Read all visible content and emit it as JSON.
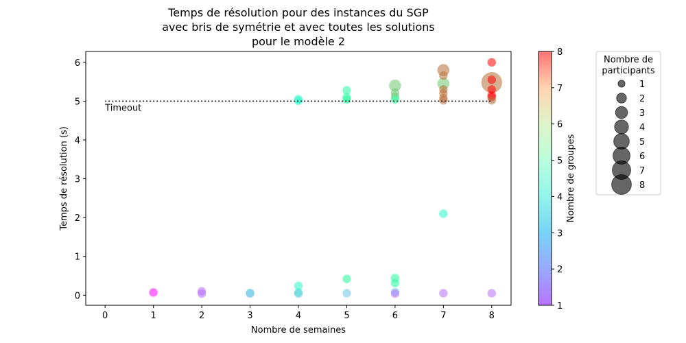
{
  "chart_data": {
    "type": "scatter",
    "title": [
      "Temps de résolution pour des instances du SGP",
      "avec bris de symétrie et avec toutes les solutions",
      "pour le modèle 2"
    ],
    "xlabel": "Nombre de semaines",
    "ylabel": "Temps de résolution (s)",
    "xlim": [
      -0.4,
      8.4
    ],
    "ylim": [
      -0.26,
      6.28
    ],
    "xticks": [
      0,
      1,
      2,
      3,
      4,
      5,
      6,
      7,
      8
    ],
    "yticks": [
      0,
      1,
      2,
      3,
      4,
      5,
      6
    ],
    "grid": false,
    "timeout": {
      "y": 5,
      "label": "Timeout",
      "style": "dotted"
    },
    "colorbar": {
      "label": "Nombre de groupes",
      "range": [
        1,
        8
      ],
      "ticks": [
        1,
        2,
        3,
        4,
        5,
        6,
        7,
        8
      ],
      "colormap": "rainbow"
    },
    "size_legend": {
      "title": [
        "Nombre de",
        "participants"
      ],
      "entries": [
        1,
        2,
        3,
        4,
        5,
        6,
        7,
        8
      ],
      "color": "#000000",
      "placement": "outside right"
    },
    "points": [
      {
        "x": 1,
        "y": 0.07,
        "groups": 1,
        "participants": 1
      },
      {
        "x": 2,
        "y": 0.1,
        "groups": 2,
        "participants": 1
      },
      {
        "x": 2,
        "y": 0.04,
        "groups": 2,
        "participants": 1
      },
      {
        "x": 3,
        "y": 0.06,
        "groups": 3,
        "participants": 1
      },
      {
        "x": 3,
        "y": 0.04,
        "groups": 3,
        "participants": 1
      },
      {
        "x": 4,
        "y": 0.24,
        "groups": 4,
        "participants": 1
      },
      {
        "x": 4,
        "y": 0.07,
        "groups": 4,
        "participants": 1
      },
      {
        "x": 4,
        "y": 0.04,
        "groups": 3,
        "participants": 1
      },
      {
        "x": 4,
        "y": 5.05,
        "groups": 4,
        "participants": 1
      },
      {
        "x": 4,
        "y": 5.01,
        "groups": 4,
        "participants": 1
      },
      {
        "x": 5,
        "y": 0.42,
        "groups": 5,
        "participants": 1
      },
      {
        "x": 5,
        "y": 0.05,
        "groups": 3,
        "participants": 1
      },
      {
        "x": 5,
        "y": 5.28,
        "groups": 5,
        "participants": 1
      },
      {
        "x": 5,
        "y": 5.1,
        "groups": 5,
        "participants": 1
      },
      {
        "x": 5,
        "y": 5.04,
        "groups": 5,
        "participants": 1
      },
      {
        "x": 6,
        "y": 0.44,
        "groups": 5,
        "participants": 1
      },
      {
        "x": 6,
        "y": 0.31,
        "groups": 5,
        "participants": 1
      },
      {
        "x": 6,
        "y": 0.08,
        "groups": 3,
        "participants": 1
      },
      {
        "x": 6,
        "y": 0.04,
        "groups": 2,
        "participants": 1
      },
      {
        "x": 6,
        "y": 5.4,
        "groups": 6,
        "participants": 2
      },
      {
        "x": 6,
        "y": 5.22,
        "groups": 6,
        "participants": 1
      },
      {
        "x": 6,
        "y": 5.12,
        "groups": 6,
        "participants": 1
      },
      {
        "x": 6,
        "y": 5.04,
        "groups": 5,
        "participants": 1
      },
      {
        "x": 7,
        "y": 2.1,
        "groups": 4,
        "participants": 1
      },
      {
        "x": 7,
        "y": 0.05,
        "groups": 2,
        "participants": 1
      },
      {
        "x": 7,
        "y": 5.8,
        "groups": 7,
        "participants": 2
      },
      {
        "x": 7,
        "y": 5.66,
        "groups": 7,
        "participants": 1
      },
      {
        "x": 7,
        "y": 5.45,
        "groups": 6,
        "participants": 2
      },
      {
        "x": 7,
        "y": 5.3,
        "groups": 7,
        "participants": 1
      },
      {
        "x": 7,
        "y": 5.2,
        "groups": 7,
        "participants": 1
      },
      {
        "x": 7,
        "y": 5.08,
        "groups": 7,
        "participants": 1
      },
      {
        "x": 7,
        "y": 5.02,
        "groups": 7,
        "participants": 1
      },
      {
        "x": 8,
        "y": 0.05,
        "groups": 2,
        "participants": 1
      },
      {
        "x": 8,
        "y": 6.0,
        "groups": 8,
        "participants": 1
      },
      {
        "x": 8,
        "y": 5.48,
        "groups": 7,
        "participants": 6
      },
      {
        "x": 8,
        "y": 5.55,
        "groups": 8,
        "participants": 1
      },
      {
        "x": 8,
        "y": 5.3,
        "groups": 8,
        "participants": 1
      },
      {
        "x": 8,
        "y": 5.15,
        "groups": 8,
        "participants": 1
      },
      {
        "x": 8,
        "y": 5.1,
        "groups": 8,
        "participants": 1
      },
      {
        "x": 8,
        "y": 5.02,
        "groups": 7,
        "participants": 1
      }
    ]
  }
}
